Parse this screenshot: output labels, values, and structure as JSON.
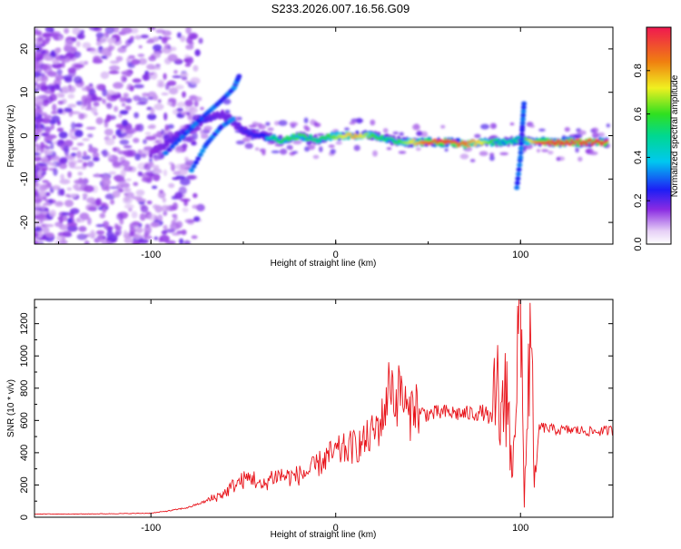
{
  "title": "S233.2026.007.16.56.G09",
  "spectrogram": {
    "xlabel": "Height of straight line (km)",
    "ylabel": "Frequency (Hz)",
    "xlim": [
      -163,
      150
    ],
    "ylim": [
      -25,
      25
    ],
    "xticks": [
      -100,
      0,
      100
    ],
    "yticks": [
      -20,
      -10,
      0,
      10,
      20
    ],
    "ridge": {
      "x": [
        -100,
        -92,
        -85,
        -78,
        -70,
        -62,
        -55,
        -50,
        -40,
        -30,
        -20,
        -10,
        0,
        10,
        20,
        30,
        40,
        50,
        60,
        70,
        80,
        90,
        100,
        110,
        120,
        130,
        140,
        147
      ],
      "freq": [
        -4,
        -2,
        0,
        2,
        4,
        5,
        3,
        1,
        0,
        -1,
        0,
        -1,
        0,
        0,
        0,
        -1,
        -1.5,
        -1.5,
        -1.5,
        -2,
        -1.5,
        -1.5,
        -1,
        -1.5,
        -1.5,
        -1.5,
        -1.5,
        -1.5
      ],
      "amplitude": [
        0.25,
        0.3,
        0.35,
        0.35,
        0.35,
        0.3,
        0.3,
        0.35,
        0.4,
        0.55,
        0.6,
        0.5,
        0.65,
        0.8,
        0.6,
        0.5,
        0.7,
        0.9,
        0.95,
        0.85,
        0.7,
        0.45,
        0.5,
        0.9,
        0.95,
        0.95,
        0.95,
        0.95
      ]
    }
  },
  "colorbar": {
    "label": "Normalized spectral amplitude",
    "range": [
      0,
      1
    ],
    "ticks": [
      "0.0",
      "0.2",
      "0.4",
      "0.6",
      "0.8"
    ]
  },
  "chart_data": {
    "type": "line",
    "title": "S233.2026.007.16.56.G09",
    "xlabel": "Height of straight line (km)",
    "ylabel": "SNR (10 * v/v)",
    "xlim": [
      -163,
      150
    ],
    "ylim": [
      0,
      1350
    ],
    "xticks": [
      -100,
      0,
      100
    ],
    "yticks": [
      0,
      200,
      400,
      600,
      800,
      1000,
      1200
    ],
    "color": "#e8141b",
    "series": [
      {
        "name": "SNR",
        "x": [
          -163,
          -140,
          -120,
          -100,
          -90,
          -80,
          -70,
          -60,
          -55,
          -50,
          -45,
          -40,
          -35,
          -30,
          -25,
          -20,
          -15,
          -10,
          -5,
          0,
          5,
          10,
          15,
          20,
          25,
          28,
          30,
          32,
          35,
          40,
          42,
          45,
          50,
          60,
          70,
          80,
          85,
          88,
          90,
          92,
          95,
          98,
          100,
          102,
          105,
          108,
          110,
          120,
          130,
          140,
          150
        ],
        "y": [
          20,
          20,
          22,
          25,
          40,
          60,
          100,
          150,
          200,
          230,
          250,
          180,
          250,
          260,
          250,
          260,
          280,
          320,
          370,
          400,
          420,
          440,
          460,
          520,
          600,
          750,
          880,
          700,
          800,
          600,
          750,
          650,
          640,
          650,
          640,
          650,
          600,
          800,
          500,
          950,
          300,
          900,
          1300,
          100,
          1100,
          200,
          560,
          540,
          540,
          530,
          540
        ]
      }
    ]
  }
}
